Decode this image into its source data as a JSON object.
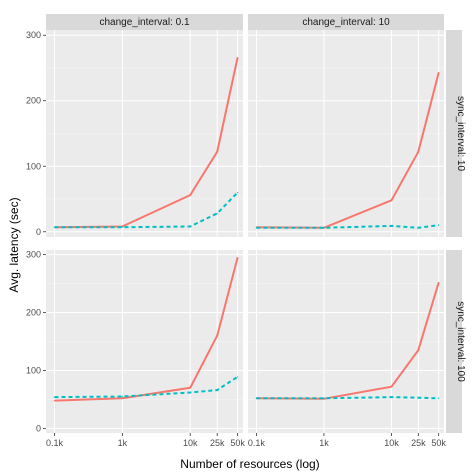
{
  "chart_data": {
    "type": "line",
    "xlabel": "Number of resources (log)",
    "ylabel": "Avg. latency (sec)",
    "x_scale": "log",
    "x_ticks": [
      100,
      1000,
      10000,
      25000,
      50000
    ],
    "x_tick_labels": [
      "0.1k",
      "1k",
      "10k",
      "25k",
      "50k"
    ],
    "xlim": [
      75,
      60000
    ],
    "y_ticks": [
      0,
      100,
      200,
      300
    ],
    "y_tick_labels": [
      "0",
      "100",
      "200",
      "300"
    ],
    "ylim": [
      -8,
      308
    ],
    "grid": true,
    "column_facets": [
      "change_interval: 0.1",
      "change_interval: 10"
    ],
    "row_facets": [
      "sync_interval: 10",
      "sync_interval: 100"
    ],
    "series_style": [
      {
        "color": "#F8766D",
        "dash": "solid"
      },
      {
        "color": "#00BFC4",
        "dash": "dashed"
      }
    ],
    "panels": [
      {
        "col": 0,
        "row": 0,
        "x": [
          100,
          1000,
          10000,
          25000,
          50000
        ],
        "series": [
          {
            "values": [
              7,
              8,
              56,
              122,
              266
            ]
          },
          {
            "values": [
              7,
              7,
              8,
              28,
              60
            ]
          }
        ]
      },
      {
        "col": 1,
        "row": 0,
        "x": [
          100,
          1000,
          10000,
          25000,
          50000
        ],
        "series": [
          {
            "values": [
              7,
              6,
              48,
              122,
              243
            ]
          },
          {
            "values": [
              6,
              6,
              9,
              6,
              10
            ]
          }
        ]
      },
      {
        "col": 0,
        "row": 1,
        "x": [
          100,
          1000,
          10000,
          25000,
          50000
        ],
        "series": [
          {
            "values": [
              48,
              52,
              70,
              160,
              295
            ]
          },
          {
            "values": [
              54,
              55,
              62,
              66,
              89
            ]
          }
        ]
      },
      {
        "col": 1,
        "row": 1,
        "x": [
          100,
          1000,
          10000,
          25000,
          50000
        ],
        "series": [
          {
            "values": [
              52,
              51,
              72,
              135,
              252
            ]
          },
          {
            "values": [
              52,
              52,
              54,
              53,
              52
            ]
          }
        ]
      }
    ]
  }
}
